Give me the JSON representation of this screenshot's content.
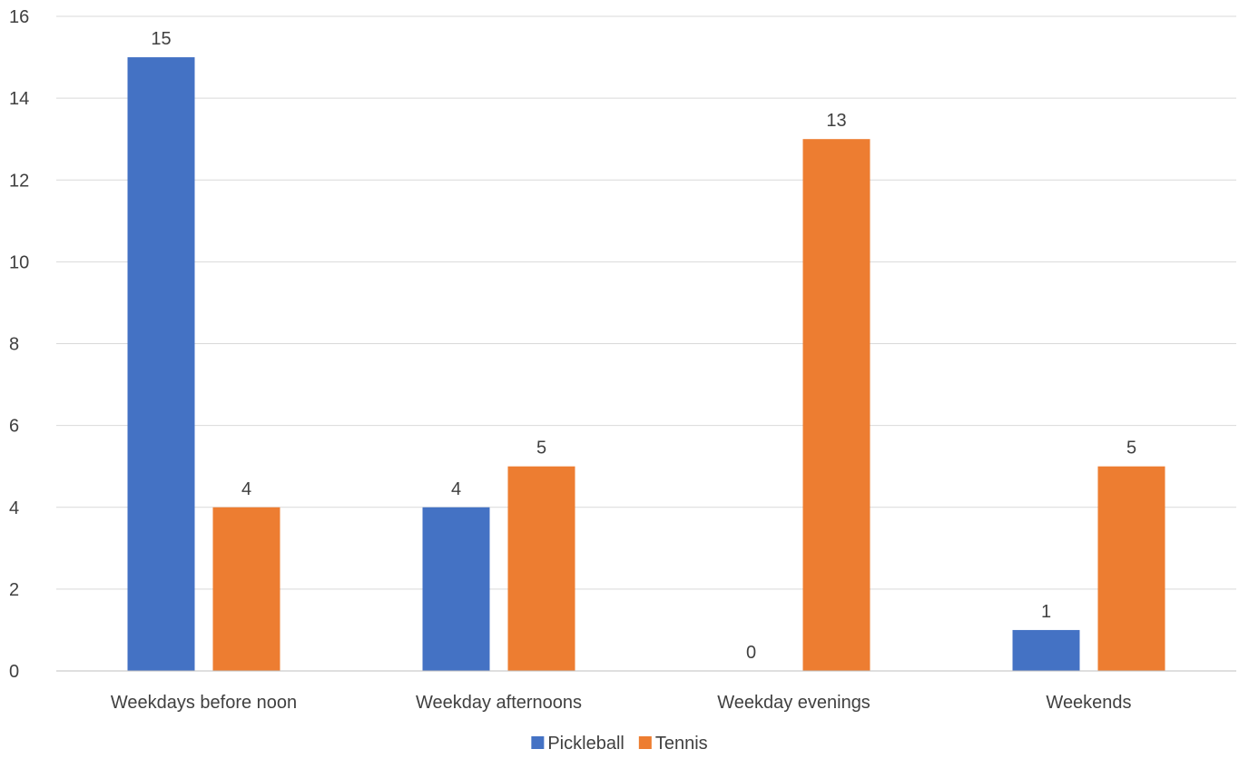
{
  "chart_data": {
    "type": "bar",
    "title": "",
    "xlabel": "",
    "ylabel": "",
    "categories": [
      "Weekdays before noon",
      "Weekday afternoons",
      "Weekday evenings",
      "Weekends"
    ],
    "series": [
      {
        "name": "Pickleball",
        "color": "#4472c4",
        "values": [
          15,
          4,
          0,
          1
        ]
      },
      {
        "name": "Tennis",
        "color": "#ed7d31",
        "values": [
          4,
          5,
          13,
          5
        ]
      }
    ],
    "ylim": [
      0,
      16
    ],
    "yticks": [
      0,
      2,
      4,
      6,
      8,
      10,
      12,
      14,
      16
    ],
    "grid": true,
    "data_labels": true,
    "legend_position": "bottom"
  }
}
